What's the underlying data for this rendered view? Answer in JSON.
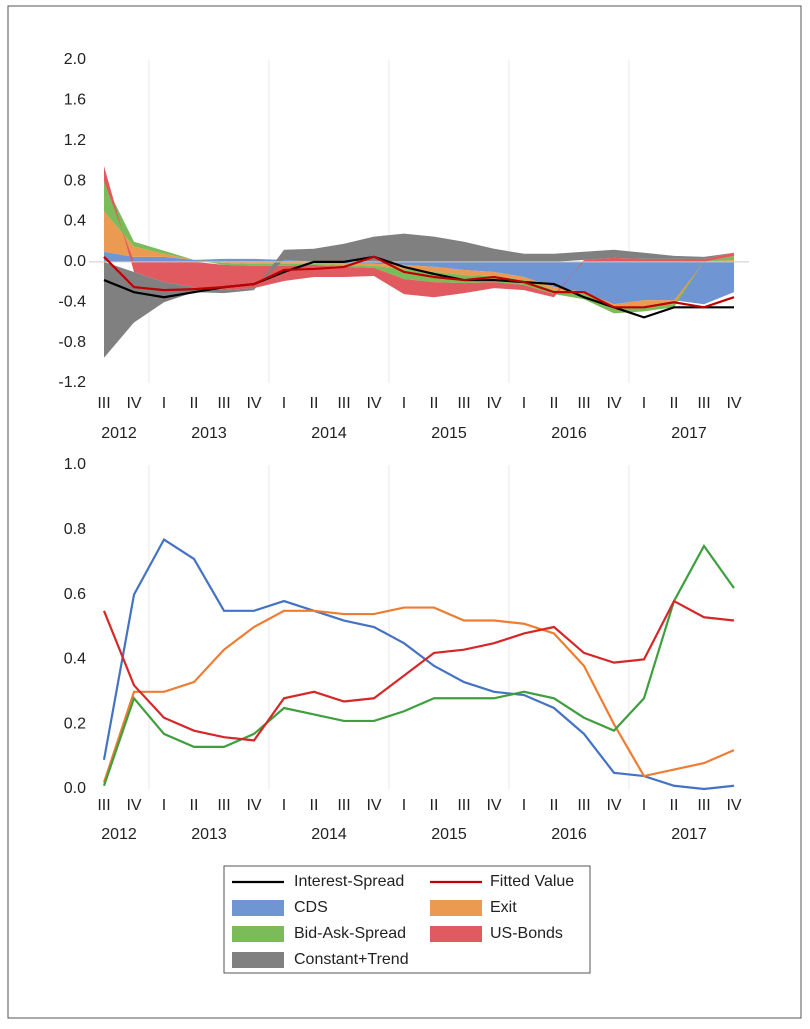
{
  "chart_data": [
    {
      "type": "stacked-area",
      "categories": [
        "III",
        "IV",
        "I",
        "II",
        "III",
        "IV",
        "I",
        "II",
        "III",
        "IV",
        "I",
        "II",
        "III",
        "IV",
        "I",
        "II",
        "III",
        "IV",
        "I",
        "II",
        "III",
        "IV"
      ],
      "x_groups": [
        {
          "label": "2012",
          "count": 2
        },
        {
          "label": "2013",
          "count": 4
        },
        {
          "label": "2014",
          "count": 4
        },
        {
          "label": "2015",
          "count": 4
        },
        {
          "label": "2016",
          "count": 4
        },
        {
          "label": "2017",
          "count": 4
        }
      ],
      "ylim": [
        -1.2,
        2.0
      ],
      "yticks": [
        -1.2,
        -0.8,
        -0.4,
        {
          "value": 0,
          "label": "0.0"
        },
        0.4,
        0.8,
        1.2,
        1.6,
        {
          "value": 2,
          "label": "2.0"
        }
      ],
      "grid": true,
      "series": [
        {
          "name": "Interest-Spread",
          "type": "line",
          "color": "#000000",
          "values": [
            -0.18,
            -0.3,
            -0.35,
            -0.3,
            -0.25,
            -0.22,
            -0.1,
            0.0,
            0.0,
            0.05,
            -0.05,
            -0.12,
            -0.18,
            -0.18,
            -0.2,
            -0.22,
            -0.35,
            -0.45,
            -0.55,
            -0.45,
            -0.45,
            -0.45
          ]
        },
        {
          "name": "Fitted Value",
          "type": "line",
          "color": "#c00000",
          "values": [
            0.05,
            -0.25,
            -0.28,
            -0.27,
            -0.25,
            -0.22,
            -0.08,
            -0.07,
            -0.05,
            0.05,
            -0.1,
            -0.15,
            -0.18,
            -0.15,
            -0.2,
            -0.3,
            -0.3,
            -0.45,
            -0.45,
            -0.4,
            -0.45,
            -0.35
          ]
        },
        {
          "name": "CDS",
          "type": "area",
          "color": "#6f95d3",
          "values": [
            0.1,
            0.05,
            0.05,
            0.02,
            0.03,
            0.03,
            0.02,
            0.0,
            -0.01,
            -0.02,
            -0.03,
            -0.05,
            -0.08,
            -0.1,
            -0.15,
            -0.25,
            -0.3,
            -0.42,
            -0.38,
            -0.38,
            -0.42,
            -0.3
          ]
        },
        {
          "name": "Exit",
          "type": "area",
          "color": "#eb9a52",
          "values": [
            0.4,
            0.1,
            0.03,
            0.0,
            -0.01,
            -0.02,
            -0.02,
            -0.02,
            -0.02,
            -0.02,
            -0.04,
            -0.05,
            -0.05,
            -0.04,
            -0.03,
            -0.03,
            -0.02,
            -0.04,
            -0.06,
            -0.04,
            0.0,
            0.02
          ]
        },
        {
          "name": "Bid-Ask-Spread",
          "type": "area",
          "color": "#7cbb5a",
          "values": [
            0.3,
            0.05,
            0.03,
            0.0,
            -0.02,
            -0.02,
            -0.02,
            -0.01,
            -0.02,
            -0.02,
            -0.1,
            -0.1,
            -0.08,
            -0.06,
            -0.05,
            -0.04,
            -0.05,
            -0.05,
            -0.05,
            -0.03,
            0.0,
            0.04
          ]
        },
        {
          "name": "US-Bonds",
          "type": "area",
          "color": "#e05a5f",
          "values": [
            0.15,
            -0.1,
            -0.2,
            -0.25,
            -0.25,
            -0.22,
            -0.15,
            -0.12,
            -0.1,
            -0.08,
            -0.15,
            -0.15,
            -0.1,
            -0.06,
            -0.05,
            -0.03,
            0.02,
            0.04,
            0.03,
            0.03,
            0.03,
            0.03
          ]
        },
        {
          "name": "Constant+Trend",
          "type": "area",
          "color": "#808080",
          "values": [
            -0.95,
            -0.5,
            -0.2,
            -0.05,
            -0.03,
            -0.02,
            0.1,
            0.13,
            0.18,
            0.25,
            0.28,
            0.25,
            0.2,
            0.13,
            0.08,
            0.08,
            0.08,
            0.08,
            0.06,
            0.03,
            0.02,
            0.0
          ]
        }
      ]
    },
    {
      "type": "line",
      "categories": [
        "III",
        "IV",
        "I",
        "II",
        "III",
        "IV",
        "I",
        "II",
        "III",
        "IV",
        "I",
        "II",
        "III",
        "IV",
        "I",
        "II",
        "III",
        "IV",
        "I",
        "II",
        "III",
        "IV"
      ],
      "x_groups": [
        {
          "label": "2012",
          "count": 2
        },
        {
          "label": "2013",
          "count": 4
        },
        {
          "label": "2014",
          "count": 4
        },
        {
          "label": "2015",
          "count": 4
        },
        {
          "label": "2016",
          "count": 4
        },
        {
          "label": "2017",
          "count": 4
        }
      ],
      "ylim": [
        0,
        1
      ],
      "yticks": [
        {
          "value": 0,
          "label": "0.0"
        },
        0.2,
        0.4,
        0.6,
        0.8,
        {
          "value": 1,
          "label": "1.0"
        }
      ],
      "grid": true,
      "series": [
        {
          "type": "line",
          "color": "#4472c4",
          "values": [
            0.09,
            0.6,
            0.77,
            0.71,
            0.55,
            0.55,
            0.58,
            0.55,
            0.52,
            0.5,
            0.45,
            0.38,
            0.33,
            0.3,
            0.29,
            0.25,
            0.17,
            0.05,
            0.04,
            0.01,
            0.0,
            0.01
          ]
        },
        {
          "type": "line",
          "color": "#ed7d31",
          "values": [
            0.02,
            0.3,
            0.3,
            0.33,
            0.43,
            0.5,
            0.55,
            0.55,
            0.54,
            0.54,
            0.56,
            0.56,
            0.52,
            0.52,
            0.51,
            0.48,
            0.38,
            0.2,
            0.04,
            0.06,
            0.08,
            0.12
          ]
        },
        {
          "type": "line",
          "color": "#3f9f3f",
          "values": [
            0.01,
            0.28,
            0.17,
            0.13,
            0.13,
            0.17,
            0.25,
            0.23,
            0.21,
            0.21,
            0.24,
            0.28,
            0.28,
            0.28,
            0.3,
            0.28,
            0.22,
            0.18,
            0.28,
            0.58,
            0.75,
            0.62
          ]
        },
        {
          "type": "line",
          "color": "#d62728",
          "values": [
            0.55,
            0.32,
            0.22,
            0.18,
            0.16,
            0.15,
            0.28,
            0.3,
            0.27,
            0.28,
            0.35,
            0.42,
            0.43,
            0.45,
            0.48,
            0.5,
            0.42,
            0.39,
            0.4,
            0.58,
            0.53,
            0.52
          ]
        }
      ]
    }
  ]
}
